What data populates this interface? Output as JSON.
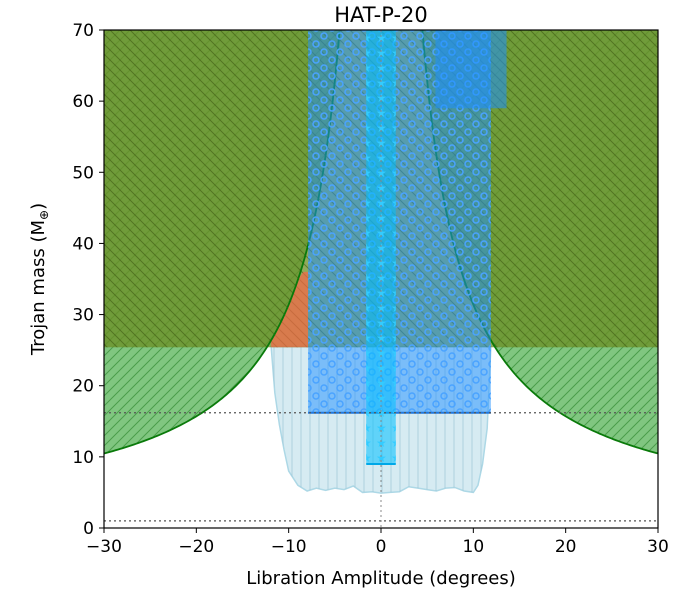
{
  "chart_data": {
    "type": "area",
    "title": "HAT-P-20",
    "xlabel": "Libration Amplitude (degrees)",
    "ylabel": "Trojan mass (M",
    "ylabel_symbol": "⊕",
    "ylabel_close": ")",
    "xlim": [
      -30,
      30
    ],
    "ylim": [
      0,
      70
    ],
    "xticks": [
      -30,
      -20,
      -10,
      0,
      10,
      20,
      30
    ],
    "yticks": [
      0,
      10,
      20,
      30,
      40,
      50,
      60,
      70
    ],
    "xtick_labels": [
      "−30",
      "−20",
      "−10",
      "0",
      "10",
      "20",
      "30"
    ],
    "ytick_labels": [
      "0",
      "10",
      "20",
      "30",
      "40",
      "50",
      "60",
      "70"
    ],
    "grid": false,
    "horizontal_lines": [
      16.2,
      1.0
    ],
    "vertical_lines": [
      0
    ],
    "regions": {
      "light_blue_outline": {
        "color": "#add8e6",
        "x": [
          -11.9,
          -11.5,
          -11.0,
          -10.5,
          -10.0,
          -9.0,
          -8.0,
          -7.0,
          -6.0,
          -5.0,
          -4.0,
          -3.0,
          -2.0,
          -1.0,
          0.0,
          1.0,
          2.0,
          3.0,
          4.0,
          5.0,
          6.0,
          7.0,
          8.0,
          9.0,
          10.0,
          10.5,
          11.0,
          11.5,
          11.9
        ],
        "y_lower": [
          25.5,
          19.0,
          14.5,
          11.0,
          8.0,
          6.0,
          5.2,
          5.6,
          5.3,
          5.6,
          5.4,
          5.9,
          5.0,
          5.1,
          4.9,
          5.0,
          5.1,
          5.8,
          5.6,
          5.4,
          5.2,
          5.6,
          5.7,
          5.2,
          5.0,
          6.0,
          9.0,
          14.0,
          25.5
        ],
        "y_upper": 25.5
      },
      "green_curve": {
        "color": "#2ca02c",
        "x": [
          -30,
          -28,
          -26,
          -24,
          -22,
          -20,
          -18,
          -16,
          -14,
          -12,
          -10,
          -9,
          -8,
          -7,
          -6,
          -5,
          -4.2,
          -3.85,
          3.85,
          4.2,
          5,
          6,
          7,
          8,
          9,
          10,
          12,
          14,
          16,
          18,
          20,
          22,
          24,
          26,
          28,
          30
        ],
        "y": [
          10.4,
          11.2,
          12.1,
          13.1,
          14.3,
          15.7,
          17.4,
          19.6,
          22.4,
          26.1,
          31.4,
          34.9,
          39.2,
          44.8,
          52.3,
          62.8,
          70.0,
          70.0,
          70.0,
          70.0,
          62.8,
          52.3,
          44.8,
          39.2,
          34.9,
          31.4,
          26.1,
          22.4,
          19.6,
          17.4,
          15.7,
          14.3,
          13.1,
          12.1,
          11.2,
          10.4
        ]
      },
      "olive_band": {
        "color": "#6b8e23",
        "y_range": [
          25.4,
          70
        ]
      },
      "red_wedge": {
        "color": "#ff6347",
        "x_range": [
          -11.9,
          -7.9
        ],
        "y_range": [
          25.4,
          36.0
        ]
      },
      "blue_wide_bar": {
        "color": "#1e90ff",
        "x_range": [
          -7.9,
          11.9
        ],
        "y_range": [
          16.2,
          70
        ]
      },
      "blue_top_bar": {
        "color": "#1e90ff",
        "x_range": [
          5.9,
          13.6
        ],
        "y_range": [
          59.0,
          70
        ]
      },
      "cyan_narrow_bar": {
        "color": "#00bfff",
        "x_range": [
          -1.6,
          1.6
        ],
        "y_range": [
          9.0,
          70
        ]
      }
    }
  }
}
